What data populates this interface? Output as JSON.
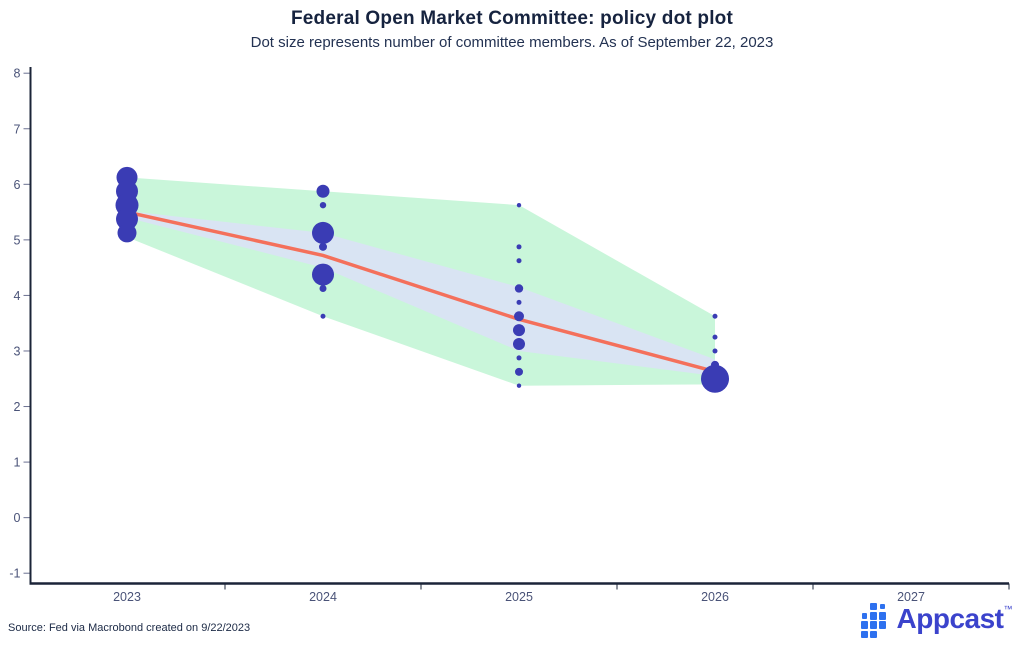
{
  "header": {
    "title": "Federal Open Market Committee: policy dot plot",
    "subtitle": "Dot size represents number of committee members. As of September 22, 2023"
  },
  "footer": {
    "source": "Source: Fed via Macrobond created on 9/22/2023",
    "logo_text": "Appcast",
    "logo_tm": "™"
  },
  "chart_data": {
    "type": "scatter",
    "title": "Federal Open Market Committee: policy dot plot",
    "subtitle": "Dot size represents number of committee members. As of September 22, 2023",
    "xlabel": "",
    "ylabel": "",
    "x_categories": [
      "2023",
      "2024",
      "2025",
      "2026",
      "2027"
    ],
    "ylim": [
      -1,
      8
    ],
    "yticks": [
      8,
      7,
      6,
      5,
      4,
      3,
      2,
      1,
      0,
      -1
    ],
    "grid": false,
    "legend": "none",
    "colors": {
      "dot": "#3a3cb4",
      "range_band": "#c9f6da",
      "central_band": "#d9e4f3",
      "median_line": "#f4705b",
      "axis": "#1b2438",
      "tick_label": "#4a5378",
      "logo_icon_blue": "#2e71ef",
      "logo_text_indigo": "#3b43cc"
    },
    "series": {
      "dots": [
        {
          "year": "2023",
          "points": [
            {
              "rate": 6.125,
              "size": 10.5
            },
            {
              "rate": 5.875,
              "size": 11
            },
            {
              "rate": 5.625,
              "size": 11.5
            },
            {
              "rate": 5.375,
              "size": 11
            },
            {
              "rate": 5.125,
              "size": 9.5
            }
          ]
        },
        {
          "year": "2024",
          "points": [
            {
              "rate": 5.875,
              "size": 6.5
            },
            {
              "rate": 5.625,
              "size": 3.2
            },
            {
              "rate": 5.125,
              "size": 11
            },
            {
              "rate": 4.875,
              "size": 4
            },
            {
              "rate": 4.375,
              "size": 11
            },
            {
              "rate": 4.125,
              "size": 3.5
            },
            {
              "rate": 3.625,
              "size": 2.5
            }
          ]
        },
        {
          "year": "2025",
          "points": [
            {
              "rate": 5.625,
              "size": 2.2
            },
            {
              "rate": 4.875,
              "size": 2.5
            },
            {
              "rate": 4.625,
              "size": 2.5
            },
            {
              "rate": 4.125,
              "size": 4.2
            },
            {
              "rate": 3.875,
              "size": 2.5
            },
            {
              "rate": 3.625,
              "size": 5
            },
            {
              "rate": 3.375,
              "size": 6
            },
            {
              "rate": 3.125,
              "size": 6
            },
            {
              "rate": 2.875,
              "size": 2.5
            },
            {
              "rate": 2.625,
              "size": 4
            },
            {
              "rate": 2.375,
              "size": 2.2
            }
          ]
        },
        {
          "year": "2026",
          "points": [
            {
              "rate": 3.625,
              "size": 2.5
            },
            {
              "rate": 3.25,
              "size": 2.5
            },
            {
              "rate": 3.0,
              "size": 2.5
            },
            {
              "rate": 2.75,
              "size": 4
            },
            {
              "rate": 2.5,
              "size": 14
            }
          ]
        },
        {
          "year": "2027",
          "points": []
        }
      ],
      "median_line": [
        {
          "year": "2023",
          "rate": 5.5
        },
        {
          "year": "2024",
          "rate": 4.72
        },
        {
          "year": "2025",
          "rate": 3.57
        },
        {
          "year": "2026",
          "rate": 2.63
        }
      ],
      "range_band": {
        "top": [
          {
            "year": "2023",
            "rate": 6.125
          },
          {
            "year": "2024",
            "rate": 5.875
          },
          {
            "year": "2025",
            "rate": 5.625
          },
          {
            "year": "2026",
            "rate": 3.625
          }
        ],
        "bottom": [
          {
            "year": "2023",
            "rate": 5.05
          },
          {
            "year": "2024",
            "rate": 3.625
          },
          {
            "year": "2025",
            "rate": 2.375
          },
          {
            "year": "2026",
            "rate": 2.4
          }
        ]
      },
      "central_band": {
        "top": [
          {
            "year": "2023",
            "rate": 5.52
          },
          {
            "year": "2024",
            "rate": 5.125
          },
          {
            "year": "2025",
            "rate": 4.15
          },
          {
            "year": "2026",
            "rate": 2.85
          }
        ],
        "bottom": [
          {
            "year": "2023",
            "rate": 5.4
          },
          {
            "year": "2024",
            "rate": 4.5
          },
          {
            "year": "2025",
            "rate": 3.0
          },
          {
            "year": "2026",
            "rate": 2.55
          }
        ]
      }
    },
    "logo_icon_squares": [
      [
        0,
        1,
        0.72
      ],
      [
        0,
        2,
        1
      ],
      [
        0,
        3,
        1
      ],
      [
        1,
        0,
        1
      ],
      [
        1,
        1,
        1
      ],
      [
        1,
        2,
        1
      ],
      [
        1,
        3,
        1
      ],
      [
        2,
        0,
        0.72
      ],
      [
        2,
        1,
        1
      ],
      [
        2,
        2,
        1
      ]
    ]
  }
}
